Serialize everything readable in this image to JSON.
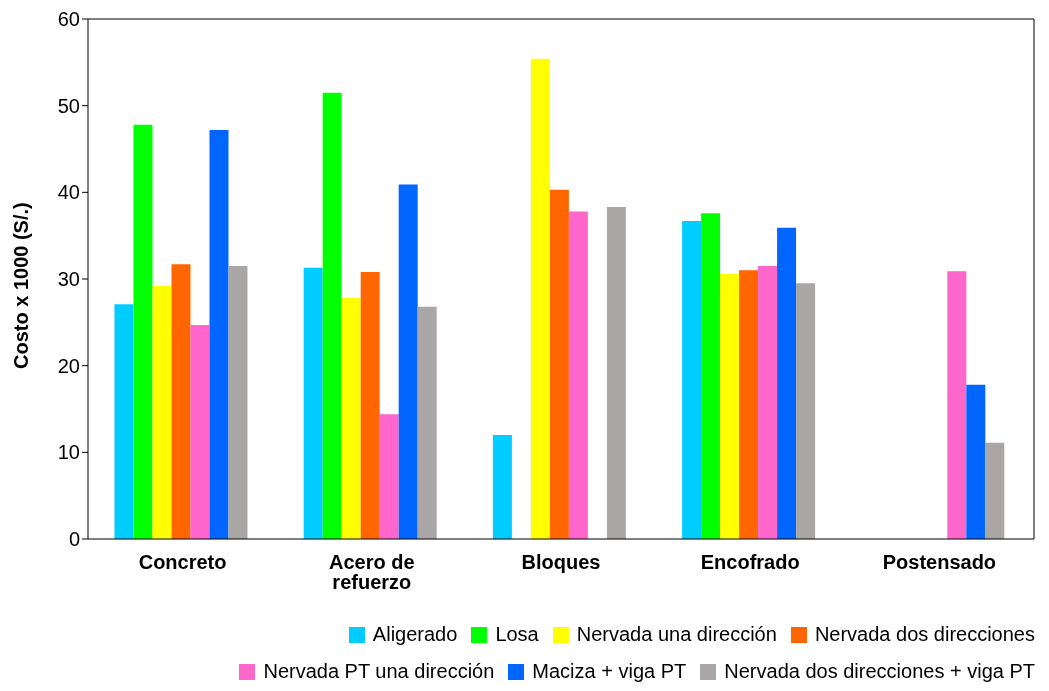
{
  "chart_data": {
    "type": "bar",
    "ylabel": "Costo x 1000 (S/.)",
    "categories": [
      "Concreto",
      "Acero de refuerzo",
      "Bloques",
      "Encofrado",
      "Postensado"
    ],
    "ylim": [
      0,
      60
    ],
    "yticks": [
      0,
      10,
      20,
      30,
      40,
      50,
      60
    ],
    "legend": "bottom",
    "series": [
      {
        "name": "Aligerado",
        "color": "#00ccff",
        "values": [
          27.1,
          31.3,
          12.0,
          36.7,
          null
        ]
      },
      {
        "name": "Losa",
        "color": "#00ff00",
        "values": [
          47.8,
          51.5,
          null,
          37.6,
          null
        ]
      },
      {
        "name": "Nervada una dirección",
        "color": "#ffff00",
        "values": [
          29.2,
          27.8,
          55.4,
          30.6,
          null
        ]
      },
      {
        "name": "Nervada dos direcciones",
        "color": "#ff6600",
        "values": [
          31.7,
          30.8,
          40.3,
          31.0,
          null
        ]
      },
      {
        "name": "Nervada PT una dirección",
        "color": "#ff66cc",
        "values": [
          24.7,
          14.4,
          37.8,
          31.5,
          30.9
        ]
      },
      {
        "name": "Maciza + viga PT",
        "color": "#0066ff",
        "values": [
          47.2,
          40.9,
          null,
          35.9,
          17.8
        ]
      },
      {
        "name": "Nervada dos direcciones + viga PT",
        "color": "#aaa6a6",
        "values": [
          31.5,
          26.8,
          38.3,
          29.5,
          11.1
        ]
      }
    ]
  }
}
